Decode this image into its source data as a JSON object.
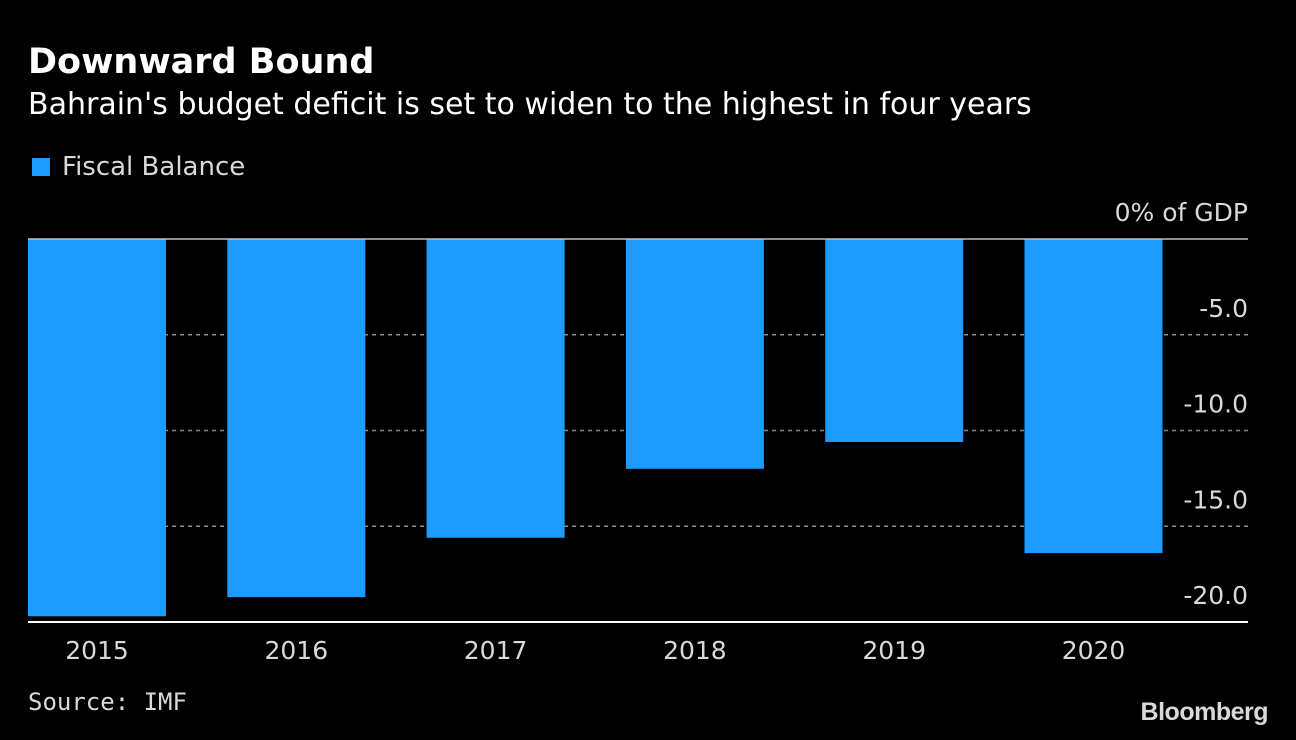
{
  "header": {
    "title": "Downward Bound",
    "subtitle": "Bahrain's budget deficit is set to widen to the highest in four years"
  },
  "footer": {
    "source": "Source: IMF",
    "brand": "Bloomberg"
  },
  "colors": {
    "background": "#000000",
    "bar": "#1e9bff",
    "text": "#ffffff",
    "muted_text": "#d9d9d9",
    "gridline": "#8c8c8c"
  },
  "chart_data": {
    "type": "bar",
    "categories": [
      "2015",
      "2016",
      "2017",
      "2018",
      "2019",
      "2020"
    ],
    "series": [
      {
        "name": "Fiscal Balance",
        "values": [
          -19.7,
          -18.7,
          -15.6,
          -12.0,
          -10.6,
          -16.4
        ]
      }
    ],
    "ylabel": "% of GDP",
    "ylim": [
      -20,
      0
    ],
    "y_ticks": [
      {
        "value": 0,
        "label": "0% of GDP"
      },
      {
        "value": -5,
        "label": "-5.0"
      },
      {
        "value": -10,
        "label": "-10.0"
      },
      {
        "value": -15,
        "label": "-15.0"
      },
      {
        "value": -20,
        "label": "-20.0"
      }
    ],
    "grid": true,
    "legend_position": "top-left",
    "y_axis_position": "right"
  }
}
